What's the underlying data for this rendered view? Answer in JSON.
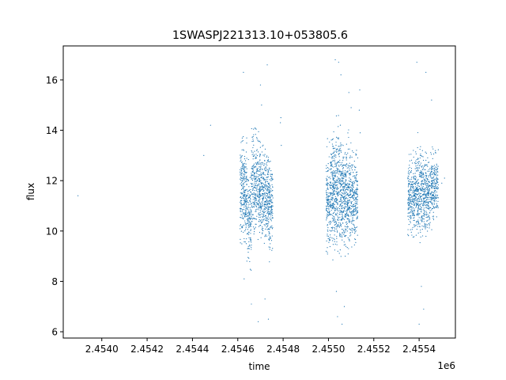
{
  "chart_data": {
    "type": "scatter",
    "title": "1SWASPJ221313.10+053805.6",
    "xlabel": "time",
    "ylabel": "flux",
    "x_offset_label": "1e6",
    "xlim": [
      2453830,
      2455560
    ],
    "ylim": [
      5.75,
      17.35
    ],
    "x_ticks": [
      2.454,
      2.4542,
      2.4544,
      2.4546,
      2.4548,
      2.455,
      2.4552,
      2.4554
    ],
    "x_tick_labels": [
      "2.4540",
      "2.4542",
      "2.4544",
      "2.4546",
      "2.4548",
      "2.4550",
      "2.4552",
      "2.4554"
    ],
    "y_ticks": [
      6,
      8,
      10,
      12,
      14,
      16
    ],
    "y_tick_labels": [
      "6",
      "8",
      "10",
      "12",
      "14",
      "16"
    ],
    "grid": false,
    "marker_color": "#1f77b4",
    "series": [
      {
        "points": [
          [
            2453895,
            11.4
          ],
          [
            2454480,
            14.2
          ],
          [
            2454450,
            13.0
          ],
          [
            2454790,
            14.5
          ],
          [
            2454792,
            13.4
          ],
          [
            2454788,
            14.3
          ],
          [
            2455138,
            15.6
          ],
          [
            2455140,
            13.9
          ],
          [
            2455136,
            14.8
          ],
          [
            2455500,
            11.9
          ],
          [
            2455512,
            12.1
          ]
        ],
        "clusters": [
          {
            "x_range": [
              2454610,
              2454640
            ],
            "center": 11.6,
            "spread": 1.3,
            "n": 260
          },
          {
            "x_range": [
              2454640,
              2454660
            ],
            "center": 10.6,
            "spread": 1.2,
            "n": 140
          },
          {
            "x_range": [
              2454660,
              2454700
            ],
            "center": 11.8,
            "spread": 1.3,
            "n": 320
          },
          {
            "x_range": [
              2454700,
              2454735
            ],
            "center": 11.5,
            "spread": 1.2,
            "n": 280
          },
          {
            "x_range": [
              2454735,
              2454755
            ],
            "center": 11.0,
            "spread": 1.2,
            "n": 160
          },
          {
            "x_range": [
              2454990,
              2455010
            ],
            "center": 11.2,
            "spread": 1.2,
            "n": 160
          },
          {
            "x_range": [
              2455010,
              2455060
            ],
            "center": 11.6,
            "spread": 1.5,
            "n": 480
          },
          {
            "x_range": [
              2455060,
              2455100
            ],
            "center": 11.4,
            "spread": 1.3,
            "n": 360
          },
          {
            "x_range": [
              2455100,
              2455130
            ],
            "center": 11.3,
            "spread": 1.2,
            "n": 220
          },
          {
            "x_range": [
              2455350,
              2455380
            ],
            "center": 11.3,
            "spread": 1.0,
            "n": 220
          },
          {
            "x_range": [
              2455380,
              2455420
            ],
            "center": 11.6,
            "spread": 1.1,
            "n": 300
          },
          {
            "x_range": [
              2455420,
              2455450
            ],
            "center": 11.4,
            "spread": 1.0,
            "n": 220
          },
          {
            "x_range": [
              2455450,
              2455485
            ],
            "center": 11.8,
            "spread": 0.9,
            "n": 220
          }
        ],
        "outliers": [
          [
            2454625,
            16.3
          ],
          [
            2454628,
            8.1
          ],
          [
            2454660,
            7.1
          ],
          [
            2454690,
            6.4
          ],
          [
            2454700,
            15.8
          ],
          [
            2454730,
            16.6
          ],
          [
            2454735,
            6.5
          ],
          [
            2454720,
            7.3
          ],
          [
            2454705,
            15.0
          ],
          [
            2455030,
            16.8
          ],
          [
            2455045,
            16.7
          ],
          [
            2455055,
            16.2
          ],
          [
            2455040,
            6.6
          ],
          [
            2455060,
            6.3
          ],
          [
            2455070,
            7.0
          ],
          [
            2455035,
            7.6
          ],
          [
            2455090,
            15.5
          ],
          [
            2455100,
            14.9
          ],
          [
            2455390,
            16.7
          ],
          [
            2455400,
            6.3
          ],
          [
            2455430,
            16.3
          ],
          [
            2455420,
            6.9
          ],
          [
            2455410,
            7.8
          ],
          [
            2455455,
            15.2
          ]
        ]
      }
    ]
  }
}
